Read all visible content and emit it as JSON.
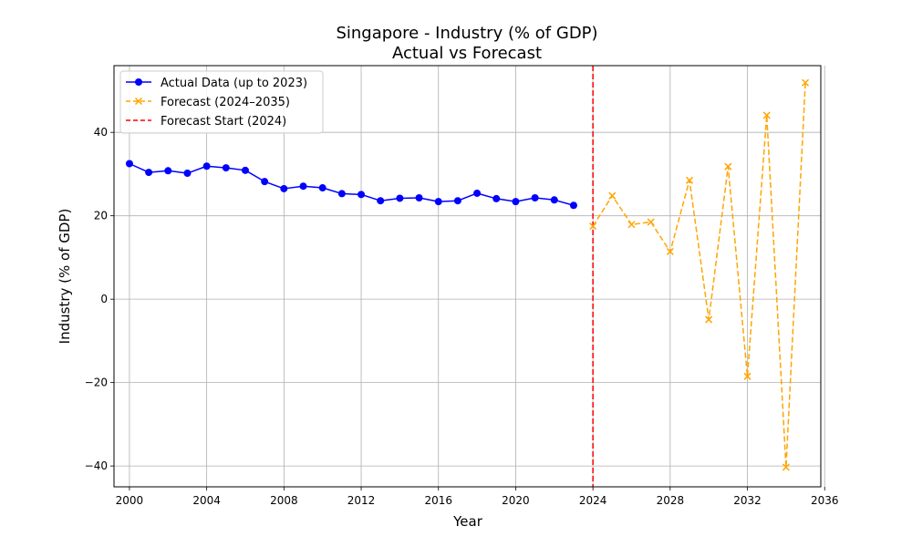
{
  "chart_data": {
    "type": "line",
    "title": "Singapore - Industry (% of GDP)",
    "subtitle": "Actual vs Forecast",
    "xlabel": "Year",
    "ylabel": "Industry (% of GDP)",
    "xlim": [
      1999.2,
      2035.8
    ],
    "ylim": [
      -45,
      56
    ],
    "x_ticks": [
      2000,
      2004,
      2008,
      2012,
      2016,
      2020,
      2024,
      2028,
      2032,
      2036
    ],
    "y_ticks": [
      -40,
      -20,
      0,
      20,
      40
    ],
    "y_tick_labels": [
      "−40",
      "−20",
      "0",
      "20",
      "40"
    ],
    "grid": true,
    "legend_position": "top-left",
    "series": [
      {
        "name": "Actual Data (up to 2023)",
        "color": "#0000ff",
        "line_style": "solid",
        "marker": "circle",
        "x": [
          2000,
          2001,
          2002,
          2003,
          2004,
          2005,
          2006,
          2007,
          2008,
          2009,
          2010,
          2011,
          2012,
          2013,
          2014,
          2015,
          2016,
          2017,
          2018,
          2019,
          2020,
          2021,
          2022,
          2023
        ],
        "values": [
          32.5,
          30.4,
          30.8,
          30.2,
          31.9,
          31.5,
          30.9,
          28.2,
          26.5,
          27.1,
          26.7,
          25.3,
          25.1,
          23.6,
          24.2,
          24.3,
          23.4,
          23.6,
          25.4,
          24.1,
          23.4,
          24.3,
          23.8,
          22.5
        ]
      },
      {
        "name": "Forecast (2024–2035)",
        "color": "#ffa500",
        "line_style": "dashed",
        "marker": "x",
        "x": [
          2024,
          2025,
          2026,
          2027,
          2028,
          2029,
          2030,
          2031,
          2032,
          2033,
          2034,
          2035
        ],
        "values": [
          17.5,
          24.8,
          17.9,
          18.5,
          11.4,
          28.5,
          -4.9,
          31.8,
          -18.5,
          44.1,
          -40.3,
          51.9
        ]
      }
    ],
    "reference_line": {
      "name": "Forecast Start (2024)",
      "x": 2024,
      "color": "#ff0000",
      "line_style": "dashed"
    }
  }
}
